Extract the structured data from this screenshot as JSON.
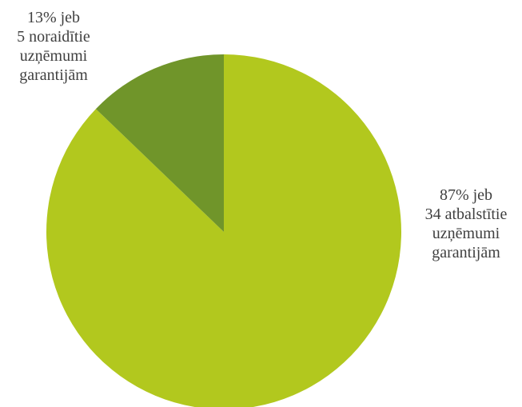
{
  "chart_data": {
    "type": "pie",
    "slices": [
      {
        "value": 34,
        "percent": 87,
        "color": "#b2c81e",
        "label_lines": [
          "87% jeb",
          "34 atbalstītie",
          "uzņēmumi",
          "garantijām"
        ]
      },
      {
        "value": 5,
        "percent": 13,
        "color": "#70952a",
        "label_lines": [
          "13% jeb",
          "5 noraidītie",
          "uzņēmumi",
          "garantijām"
        ]
      }
    ]
  }
}
